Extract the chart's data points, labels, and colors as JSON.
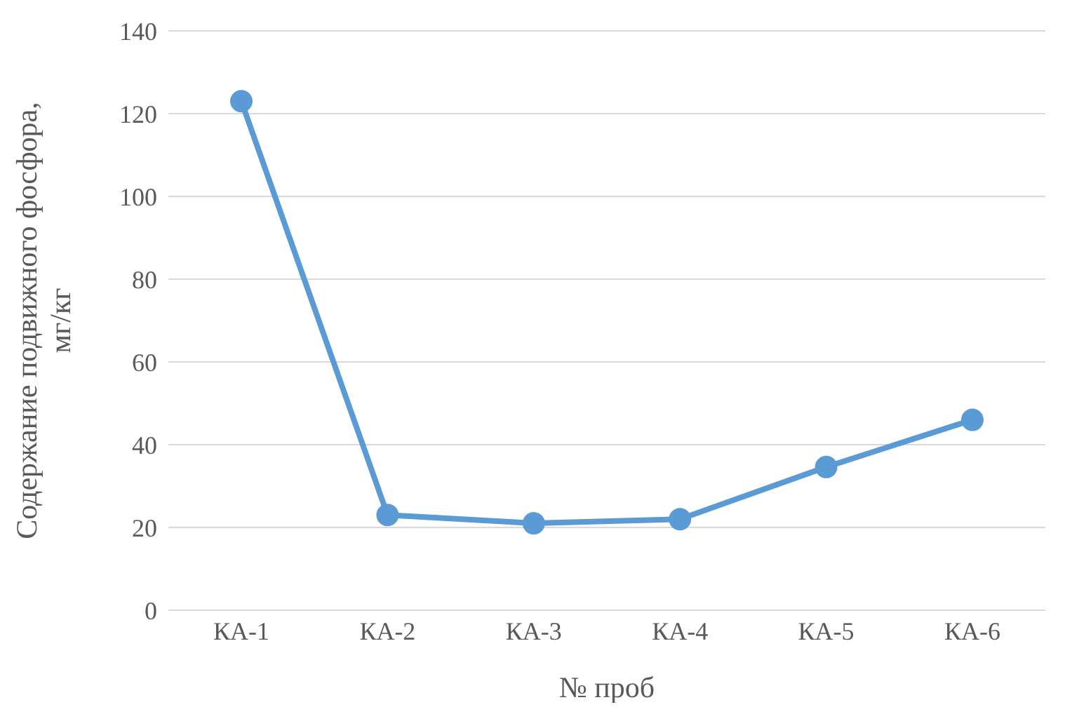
{
  "chart_data": {
    "type": "line",
    "xlabel": "№ проб",
    "ylabel": "Содержание подвижного фосфора, мг/кг",
    "categories": [
      "КА-1",
      "КА-2",
      "КА-3",
      "КА-4",
      "КА-5",
      "КА-6"
    ],
    "series": [
      {
        "color": "#5b9bd5",
        "values": [
          123,
          23,
          21,
          22,
          34.6,
          46
        ]
      }
    ],
    "ylim": [
      0,
      140
    ],
    "yticks": [
      0,
      20,
      40,
      60,
      80,
      100,
      120,
      140
    ],
    "grid": "y",
    "marker": "circle",
    "line_style": "solid",
    "legend": false
  }
}
